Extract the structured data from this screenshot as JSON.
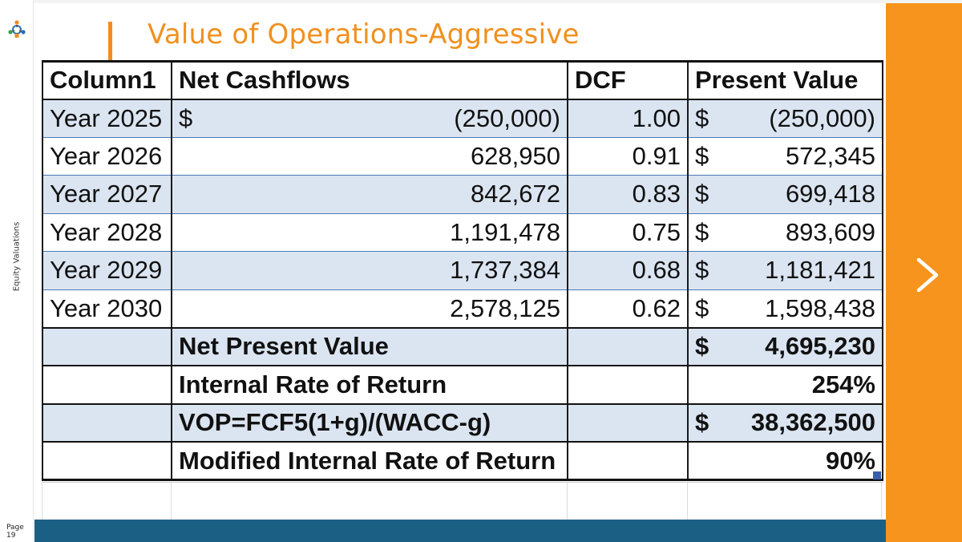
{
  "sidebar": {
    "vertical_label": "Equity Valuations",
    "page_label": "Page 19"
  },
  "slide": {
    "title": "Value of Operations-Aggressive",
    "colors": {
      "accent_orange": "#f7941d",
      "title_orange": "#f0901e",
      "bottom_bar": "#1b5f85",
      "row_shade": "#dbe5f1"
    },
    "next_icon": "chevron-right-icon"
  },
  "table": {
    "headers": [
      "Column1",
      "Net Cashflows",
      "DCF",
      "Present Value"
    ],
    "rows": [
      {
        "label": "Year 2025",
        "cf_currency": "$",
        "cashflow": "(250,000)",
        "dcf": "1.00",
        "pv_currency": "$",
        "pv": "(250,000)"
      },
      {
        "label": "Year 2026",
        "cf_currency": "",
        "cashflow": "628,950",
        "dcf": "0.91",
        "pv_currency": "$",
        "pv": "572,345"
      },
      {
        "label": "Year 2027",
        "cf_currency": "",
        "cashflow": "842,672",
        "dcf": "0.83",
        "pv_currency": "$",
        "pv": "699,418"
      },
      {
        "label": "Year 2028",
        "cf_currency": "",
        "cashflow": "1,191,478",
        "dcf": "0.75",
        "pv_currency": "$",
        "pv": "893,609"
      },
      {
        "label": "Year 2029",
        "cf_currency": "",
        "cashflow": "1,737,384",
        "dcf": "0.68",
        "pv_currency": "$",
        "pv": "1,181,421"
      },
      {
        "label": "Year 2030",
        "cf_currency": "",
        "cashflow": "2,578,125",
        "dcf": "0.62",
        "pv_currency": "$",
        "pv": "1,598,438"
      }
    ],
    "summary": [
      {
        "label": "Net Present Value",
        "pv_currency": "$",
        "pv": "4,695,230"
      },
      {
        "label": "Internal Rate of Return",
        "pv_currency": "",
        "pv": "254%"
      },
      {
        "label": "VOP=FCF5(1+g)/(WACC-g)",
        "pv_currency": "$",
        "pv": "38,362,500"
      },
      {
        "label": "Modified Internal Rate of Return",
        "pv_currency": "",
        "pv": "90%"
      }
    ]
  }
}
